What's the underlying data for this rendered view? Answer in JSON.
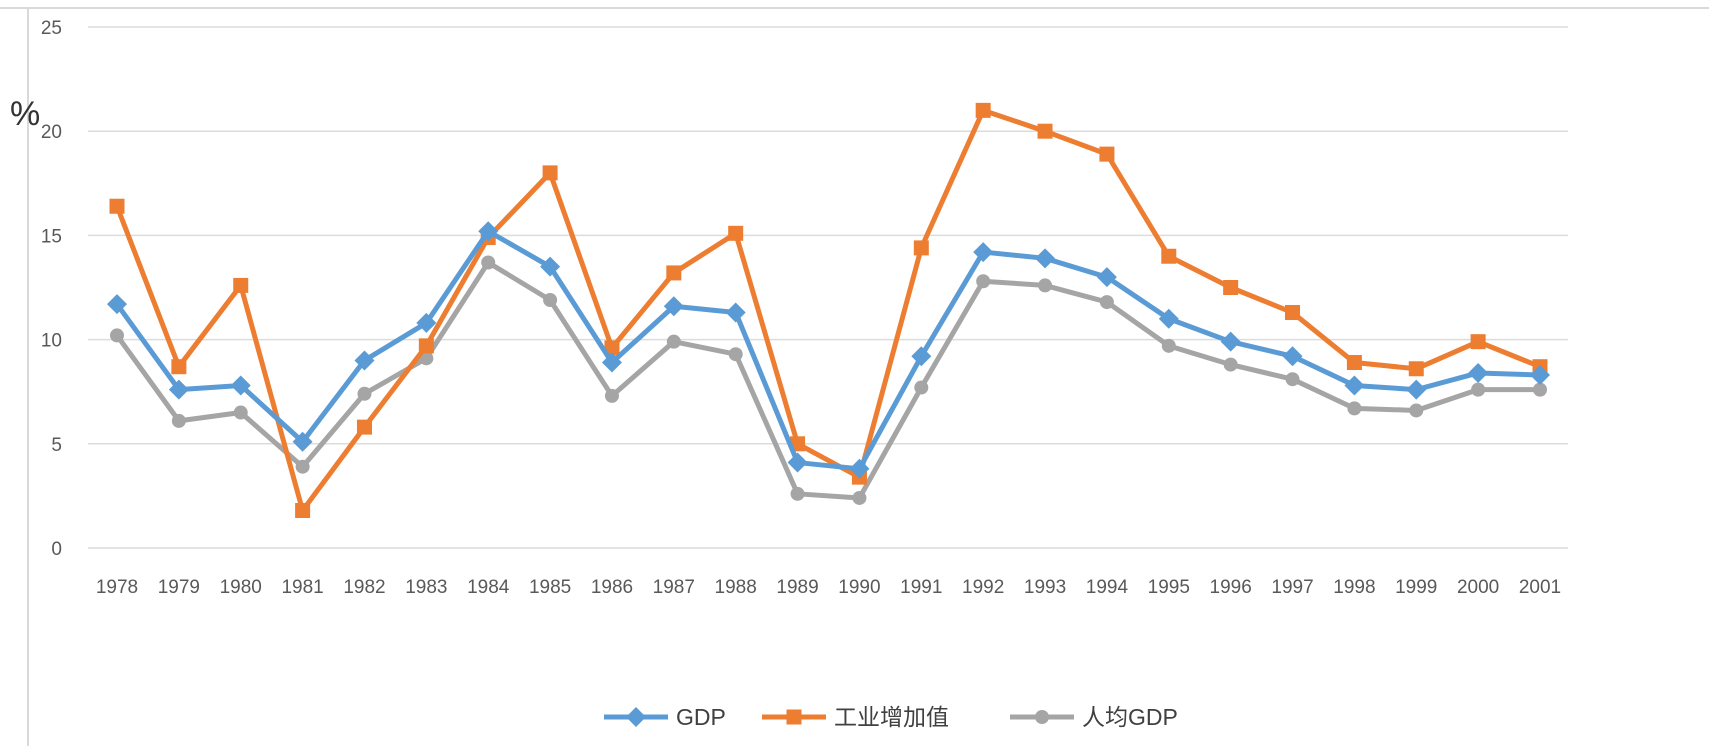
{
  "chart_data": {
    "type": "line",
    "title": "",
    "xlabel": "",
    "ylabel": "%",
    "ylim": [
      0,
      25
    ],
    "yticks": [
      0,
      5,
      10,
      15,
      20,
      25
    ],
    "grid": true,
    "legend": "bottom",
    "categories": [
      "1978",
      "1979",
      "1980",
      "1981",
      "1982",
      "1983",
      "1984",
      "1985",
      "1986",
      "1987",
      "1988",
      "1989",
      "1990",
      "1991",
      "1992",
      "1993",
      "1994",
      "1995",
      "1996",
      "1997",
      "1998",
      "1999",
      "2000",
      "2001"
    ],
    "series": [
      {
        "name": "GDP",
        "color": "#5b9bd5",
        "marker": "diamond",
        "values": [
          11.7,
          7.6,
          7.8,
          5.1,
          9.0,
          10.8,
          15.2,
          13.5,
          8.9,
          11.6,
          11.3,
          4.1,
          3.8,
          9.2,
          14.2,
          13.9,
          13.0,
          11.0,
          9.9,
          9.2,
          7.8,
          7.6,
          8.4,
          8.3
        ]
      },
      {
        "name": "工业增加值",
        "color": "#ed7d31",
        "marker": "square",
        "values": [
          16.4,
          8.7,
          12.6,
          1.8,
          5.8,
          9.7,
          14.9,
          18.0,
          9.6,
          13.2,
          15.1,
          5.0,
          3.4,
          14.4,
          21.0,
          20.0,
          18.9,
          14.0,
          12.5,
          11.3,
          8.9,
          8.6,
          9.9,
          8.7
        ]
      },
      {
        "name": "人均GDP",
        "color": "#a5a5a5",
        "marker": "circle",
        "values": [
          10.2,
          6.1,
          6.5,
          3.9,
          7.4,
          9.1,
          13.7,
          11.9,
          7.3,
          9.9,
          9.3,
          2.6,
          2.4,
          7.7,
          12.8,
          12.6,
          11.8,
          9.7,
          8.8,
          8.1,
          6.7,
          6.6,
          7.6,
          7.6
        ]
      }
    ]
  }
}
